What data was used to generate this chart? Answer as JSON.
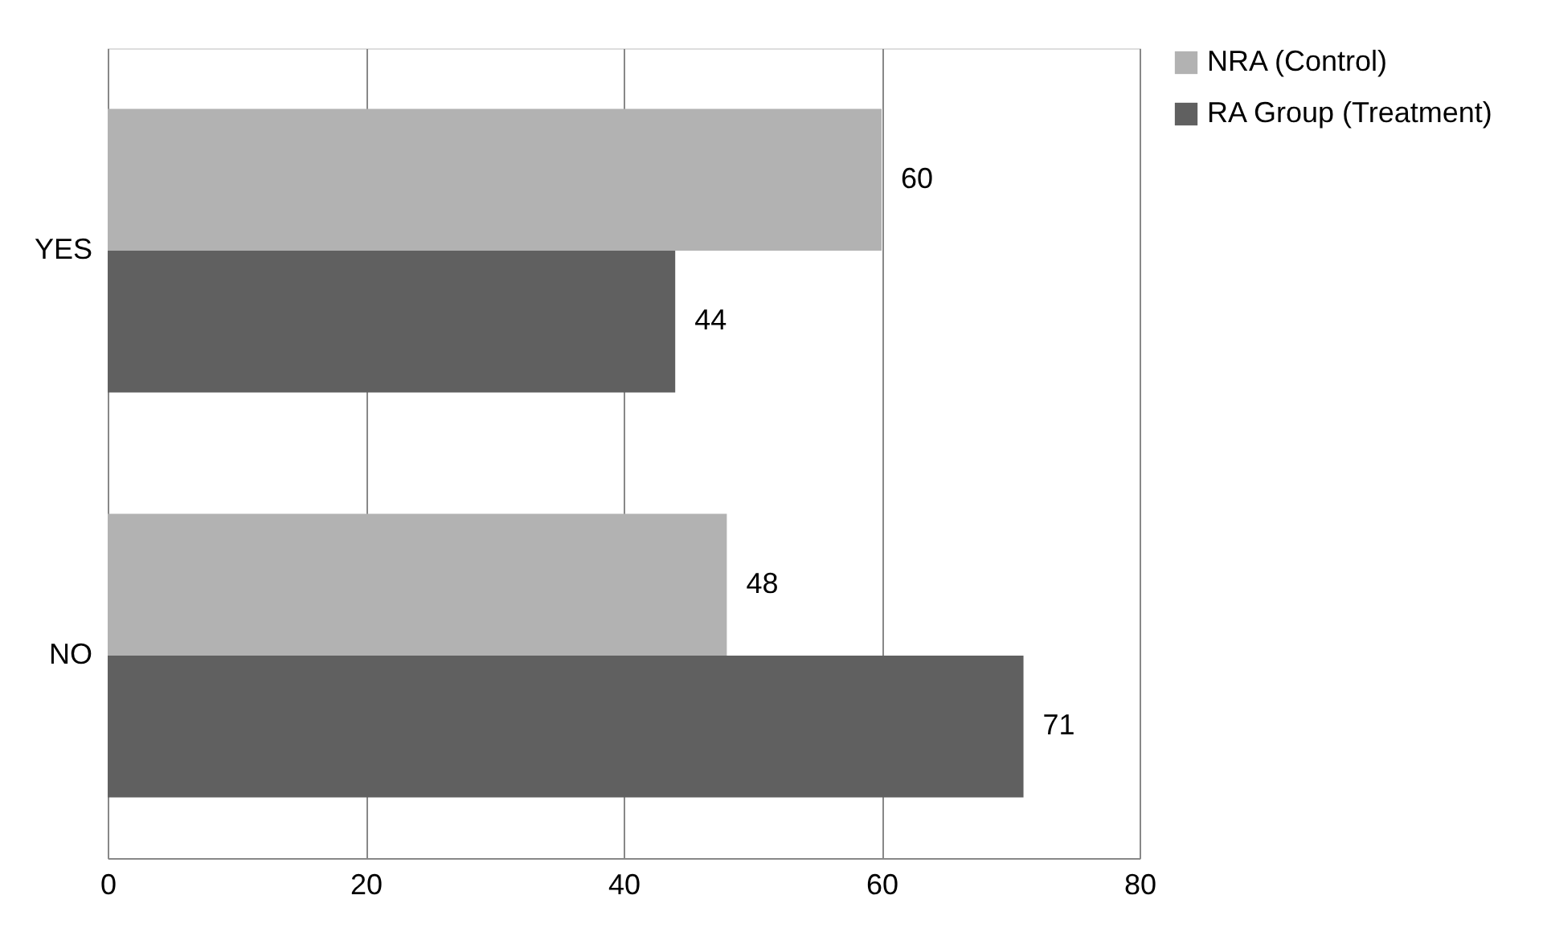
{
  "chart_data": {
    "type": "bar",
    "orientation": "horizontal",
    "categories": [
      "YES",
      "NO"
    ],
    "series": [
      {
        "name": "NRA (Control)",
        "color": "#b2b2b2",
        "values": [
          60,
          48
        ]
      },
      {
        "name": "RA Group (Treatment)",
        "color": "#606060",
        "values": [
          44,
          71
        ]
      }
    ],
    "xlim": [
      0,
      80
    ],
    "xticks": [
      0,
      20,
      40,
      60,
      80
    ],
    "grid": "x",
    "legend": "right",
    "data_labels": true
  }
}
